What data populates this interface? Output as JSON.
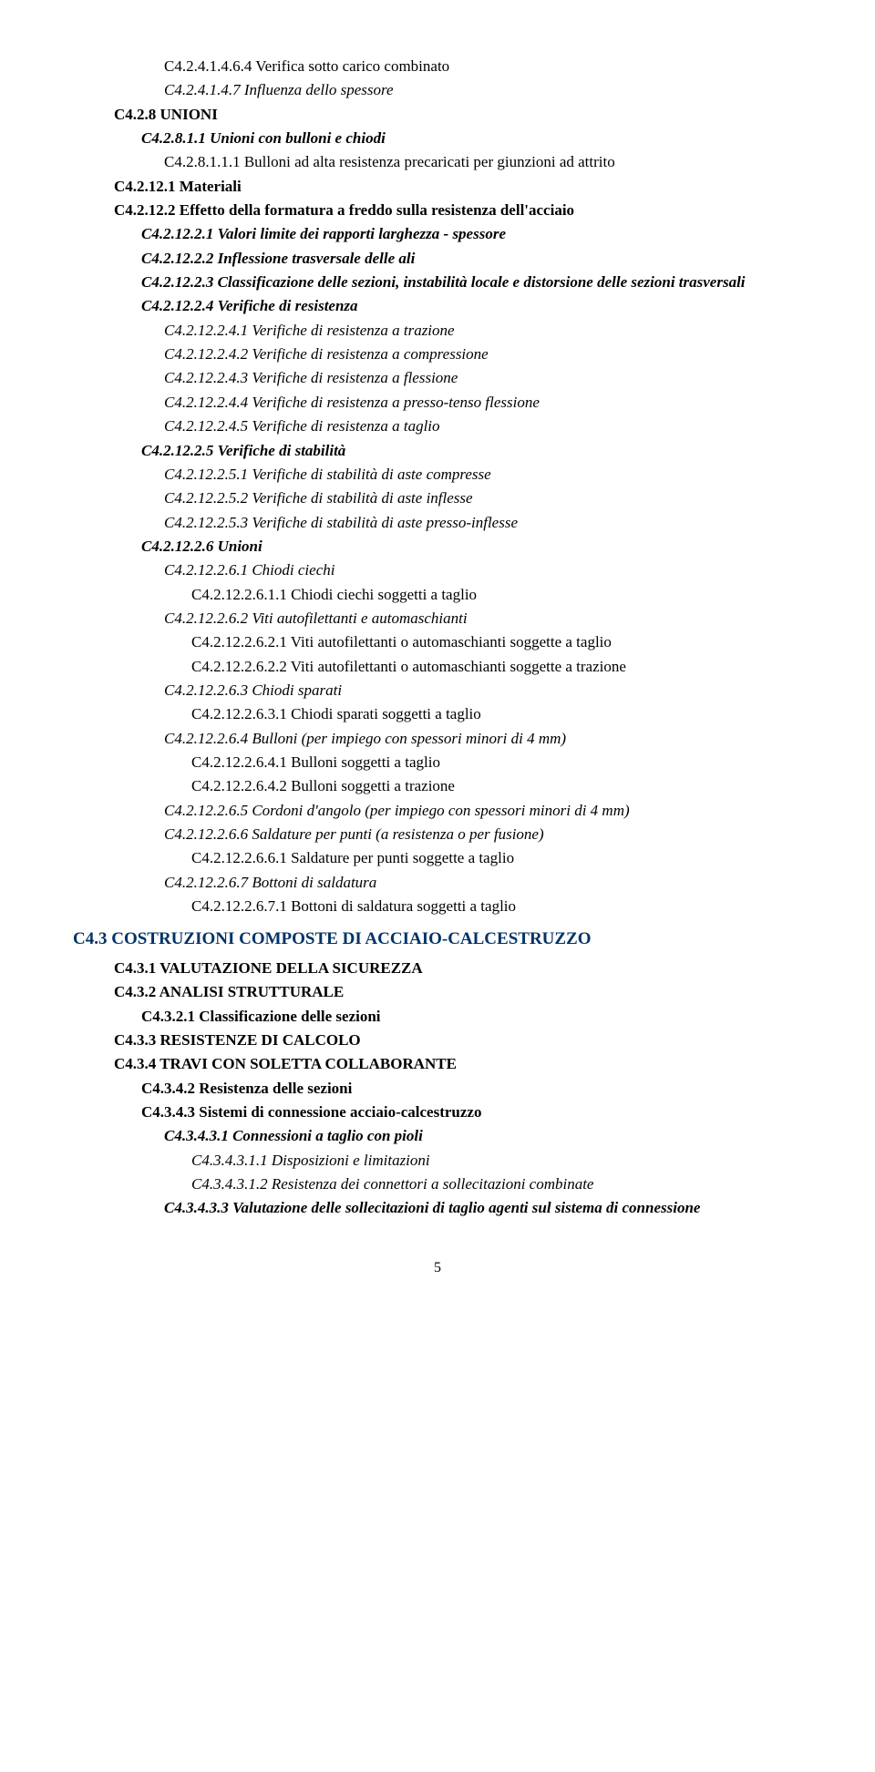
{
  "colors": {
    "heading": "#003366",
    "text": "#000000",
    "background": "#ffffff"
  },
  "typography": {
    "font_family": "Times New Roman",
    "base_size_pt": 12,
    "heading_size_pt": 14,
    "line_height": 1.55
  },
  "entries": [
    {
      "indent": 3,
      "text": "C4.2.4.1.4.6.4 Verifica sotto carico combinato"
    },
    {
      "indent": 3,
      "italic": true,
      "text": "C4.2.4.1.4.7 Influenza dello spessore"
    },
    {
      "indent": 1,
      "bold": true,
      "text": "C4.2.8    UNIONI"
    },
    {
      "indent": 2,
      "bold": true,
      "italic": true,
      "text": "C4.2.8.1.1   Unioni con bulloni e chiodi"
    },
    {
      "indent": 3,
      "text": "C4.2.8.1.1.1 Bulloni ad alta resistenza precaricati per giunzioni ad attrito"
    },
    {
      "indent": 1,
      "bold": true,
      "text": "C4.2.12.1   Materiali"
    },
    {
      "indent": 1,
      "bold": true,
      "text": "C4.2.12.2   Effetto della formatura a freddo sulla resistenza dell'acciaio"
    },
    {
      "indent": 2,
      "bold": true,
      "italic": true,
      "text": "C4.2.12.2.1  Valori limite dei rapporti larghezza - spessore"
    },
    {
      "indent": 2,
      "bold": true,
      "italic": true,
      "text": "C4.2.12.2.2  Inflessione trasversale delle ali"
    },
    {
      "indent": 2,
      "bold": true,
      "italic": true,
      "text": "C4.2.12.2.3  Classificazione delle sezioni, instabilità locale e distorsione delle sezioni trasversali"
    },
    {
      "indent": 2,
      "bold": true,
      "italic": true,
      "text": "C4.2.12.2.4  Verifiche di resistenza"
    },
    {
      "indent": 3,
      "italic": true,
      "text": "C4.2.12.2.4.1 Verifiche di resistenza a trazione"
    },
    {
      "indent": 3,
      "italic": true,
      "text": "C4.2.12.2.4.2 Verifiche di resistenza a compressione"
    },
    {
      "indent": 3,
      "italic": true,
      "text": "C4.2.12.2.4.3 Verifiche di resistenza a flessione"
    },
    {
      "indent": 3,
      "italic": true,
      "text": "C4.2.12.2.4.4 Verifiche di resistenza a presso-tenso flessione"
    },
    {
      "indent": 3,
      "italic": true,
      "text": "C4.2.12.2.4.5 Verifiche di resistenza a taglio"
    },
    {
      "indent": 2,
      "bold": true,
      "italic": true,
      "text": "C4.2.12.2.5  Verifiche di stabilità"
    },
    {
      "indent": 3,
      "italic": true,
      "text": "C4.2.12.2.5.1 Verifiche di stabilità di aste compresse"
    },
    {
      "indent": 3,
      "italic": true,
      "text": "C4.2.12.2.5.2 Verifiche di stabilità di aste inflesse"
    },
    {
      "indent": 3,
      "italic": true,
      "text": "C4.2.12.2.5.3 Verifiche di stabilità di aste presso-inflesse"
    },
    {
      "indent": 2,
      "bold": true,
      "italic": true,
      "text": "C4.2.12.2.6  Unioni"
    },
    {
      "indent": 3,
      "italic": true,
      "text": "C4.2.12.2.6.1 Chiodi ciechi"
    },
    {
      "indent": 4,
      "text": "C4.2.12.2.6.1.1 Chiodi ciechi soggetti a taglio"
    },
    {
      "indent": 3,
      "italic": true,
      "text": "C4.2.12.2.6.2  Viti autofilettanti e automaschianti"
    },
    {
      "indent": 4,
      "text": "C4.2.12.2.6.2.1 Viti autofilettanti o automaschianti soggette a taglio"
    },
    {
      "indent": 4,
      "text": "C4.2.12.2.6.2.2 Viti autofilettanti o automaschianti soggette a trazione"
    },
    {
      "indent": 3,
      "italic": true,
      "text": "C4.2.12.2.6.3 Chiodi sparati"
    },
    {
      "indent": 4,
      "text": "C4.2.12.2.6.3.1 Chiodi sparati soggetti a taglio"
    },
    {
      "indent": 3,
      "italic": true,
      "text": "C4.2.12.2.6.4  Bulloni  (per impiego con spessori minori di 4 mm)"
    },
    {
      "indent": 4,
      "text": "C4.2.12.2.6.4.1 Bulloni soggetti a taglio"
    },
    {
      "indent": 4,
      "text": "C4.2.12.2.6.4.2 Bulloni soggetti a trazione"
    },
    {
      "indent": 3,
      "italic": true,
      "text": "C4.2.12.2.6.5 Cordoni d'angolo  (per impiego con spessori minori di 4 mm)"
    },
    {
      "indent": 3,
      "italic": true,
      "text": "C4.2.12.2.6.6  Saldature per punti  (a resistenza o per fusione)"
    },
    {
      "indent": 4,
      "text": "C4.2.12.2.6.6.1 Saldature per punti soggette a taglio"
    },
    {
      "indent": 3,
      "italic": true,
      "text": "C4.2.12.2.6.7  Bottoni di saldatura"
    },
    {
      "indent": 4,
      "text": "C4.2.12.2.6.7.1 Bottoni di saldatura soggetti a taglio"
    },
    {
      "indent": 0,
      "heading": true,
      "text": "C4.3 COSTRUZIONI COMPOSTE DI ACCIAIO-CALCESTRUZZO"
    },
    {
      "indent": 1,
      "bold": true,
      "text": "C4.3.1    VALUTAZIONE DELLA SICUREZZA"
    },
    {
      "indent": 1,
      "bold": true,
      "text": "C4.3.2    ANALISI STRUTTURALE"
    },
    {
      "indent": 2,
      "bold": true,
      "text": "C4.3.2.1 Classificazione delle sezioni"
    },
    {
      "indent": 1,
      "bold": true,
      "text": "C4.3.3    RESISTENZE DI CALCOLO"
    },
    {
      "indent": 1,
      "bold": true,
      "text": "C4.3.4    TRAVI CON SOLETTA COLLABORANTE"
    },
    {
      "indent": 2,
      "bold": true,
      "text": "C4.3.4.2 Resistenza delle sezioni"
    },
    {
      "indent": 2,
      "bold": true,
      "text": "C4.3.4.3 Sistemi di connessione acciaio-calcestruzzo"
    },
    {
      "indent": 3,
      "bold": true,
      "italic": true,
      "text": "C4.3.4.3.1   Connessioni a taglio con pioli"
    },
    {
      "indent": 4,
      "italic": true,
      "text": "C4.3.4.3.1.1 Disposizioni e limitazioni"
    },
    {
      "indent": 4,
      "italic": true,
      "text": "C4.3.4.3.1.2 Resistenza dei connettori a sollecitazioni combinate"
    },
    {
      "indent": 3,
      "bold": true,
      "italic": true,
      "text": "C4.3.4.3.3   Valutazione delle sollecitazioni di taglio agenti sul sistema di connessione"
    }
  ],
  "page_number": "5"
}
